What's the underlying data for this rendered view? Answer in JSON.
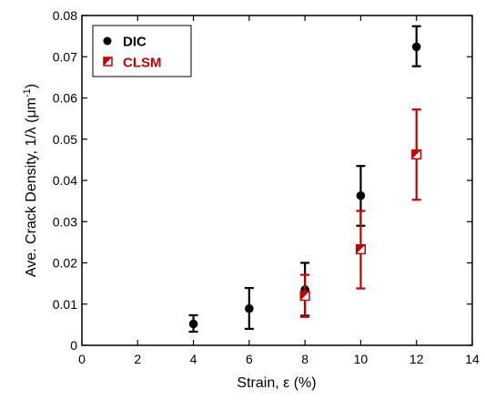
{
  "chart_data": {
    "type": "scatter",
    "xlabel": "Strain, ε (%)",
    "ylabel_main": "Ave. Crack Density, 1/λ (μm",
    "ylabel_sup": "-1",
    "ylabel_close": ")",
    "xlim": [
      0,
      14
    ],
    "ylim": [
      0,
      0.08
    ],
    "x_ticks": [
      0,
      2,
      4,
      6,
      8,
      10,
      12,
      14
    ],
    "x_tick_labels": [
      "0",
      "2",
      "4",
      "6",
      "8",
      "10",
      "12",
      "14"
    ],
    "y_ticks": [
      0,
      0.01,
      0.02,
      0.03,
      0.04,
      0.05,
      0.06,
      0.07,
      0.08
    ],
    "y_tick_labels": [
      "0",
      "0.01",
      "0.02",
      "0.03",
      "0.04",
      "0.05",
      "0.06",
      "0.07",
      "0.08"
    ],
    "grid": false,
    "legend_position": "top-left",
    "series": [
      {
        "name": "DIC",
        "color": "#000000",
        "marker": "filled-circle",
        "points": [
          {
            "x": 4,
            "y": 0.0052,
            "err_low": 0.0033,
            "err_high": 0.0073
          },
          {
            "x": 6,
            "y": 0.0089,
            "err_low": 0.004,
            "err_high": 0.0139
          },
          {
            "x": 8,
            "y": 0.0135,
            "err_low": 0.0072,
            "err_high": 0.02
          },
          {
            "x": 10,
            "y": 0.0363,
            "err_low": 0.029,
            "err_high": 0.0435
          },
          {
            "x": 12,
            "y": 0.0724,
            "err_low": 0.0677,
            "err_high": 0.0774
          }
        ]
      },
      {
        "name": "CLSM",
        "color": "#c00000",
        "marker": "half-filled-square",
        "points": [
          {
            "x": 8,
            "y": 0.012,
            "err_low": 0.0069,
            "err_high": 0.0171
          },
          {
            "x": 10,
            "y": 0.0233,
            "err_low": 0.0138,
            "err_high": 0.0326
          },
          {
            "x": 12,
            "y": 0.0463,
            "err_low": 0.0353,
            "err_high": 0.0572
          }
        ]
      }
    ]
  }
}
